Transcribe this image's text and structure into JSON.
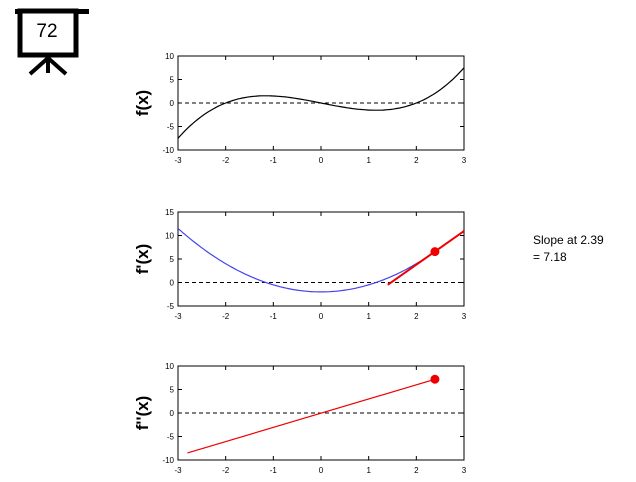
{
  "badge": {
    "number": "72"
  },
  "annotation": {
    "line1": "Slope at 2.39",
    "line2": "= 7.18"
  },
  "chart_data": [
    {
      "type": "line",
      "ylabel": "f(x)",
      "xlim": [
        -3,
        3
      ],
      "ylim": [
        -10,
        10
      ],
      "xticks": [
        "-3",
        "-2",
        "-1",
        "0",
        "1",
        "2",
        "3"
      ],
      "yticks": [
        "-10",
        "-5",
        "0",
        "5",
        "10"
      ],
      "reference_line_y": 0,
      "series": [
        {
          "color": "#000000",
          "x": [
            -3,
            -2.5,
            -2,
            -1.5,
            -1.155,
            -1,
            -0.5,
            0,
            0.5,
            1,
            1.155,
            1.5,
            2,
            2.5,
            3
          ],
          "y": [
            -7.5,
            -2.81,
            0,
            1.31,
            1.54,
            1.5,
            0.94,
            0,
            -0.94,
            -1.5,
            -1.54,
            -1.31,
            0,
            2.81,
            7.5
          ]
        }
      ]
    },
    {
      "type": "line",
      "ylabel": "f'(x)",
      "xlim": [
        -3,
        3
      ],
      "ylim": [
        -5,
        15
      ],
      "xticks": [
        "-3",
        "-2",
        "-1",
        "0",
        "1",
        "2",
        "3"
      ],
      "yticks": [
        "-5",
        "0",
        "5",
        "10",
        "15"
      ],
      "reference_line_y": 0,
      "series": [
        {
          "color": "#4444ee",
          "x": [
            -3,
            -2.5,
            -2,
            -1.5,
            -1,
            -0.5,
            0,
            0.5,
            1,
            1.5,
            2,
            2.39
          ],
          "y": [
            11,
            6.38,
            2.5,
            -0.63,
            -1.5,
            -1.63,
            -2,
            -1.63,
            -0.5,
            1.38,
            4,
            6.57
          ]
        }
      ],
      "tangent": {
        "color": "#ee0000",
        "x": [
          1.4,
          3.0
        ],
        "y": [
          -0.5,
          10.95
        ]
      },
      "marker": {
        "color": "#ee0000",
        "x": 2.39,
        "y": 6.57
      }
    },
    {
      "type": "line",
      "ylabel": "f''(x)",
      "xlim": [
        -3,
        3
      ],
      "ylim": [
        -10,
        10
      ],
      "xticks": [
        "-3",
        "-2",
        "-1",
        "0",
        "1",
        "2",
        "3"
      ],
      "yticks": [
        "-10",
        "-5",
        "0",
        "5",
        "10"
      ],
      "reference_line_y": 0,
      "series": [
        {
          "color": "#ee0000",
          "x": [
            -2.8,
            2.39
          ],
          "y": [
            -8.5,
            7.18
          ]
        }
      ],
      "marker": {
        "color": "#ee0000",
        "x": 2.39,
        "y": 7.18
      }
    }
  ]
}
